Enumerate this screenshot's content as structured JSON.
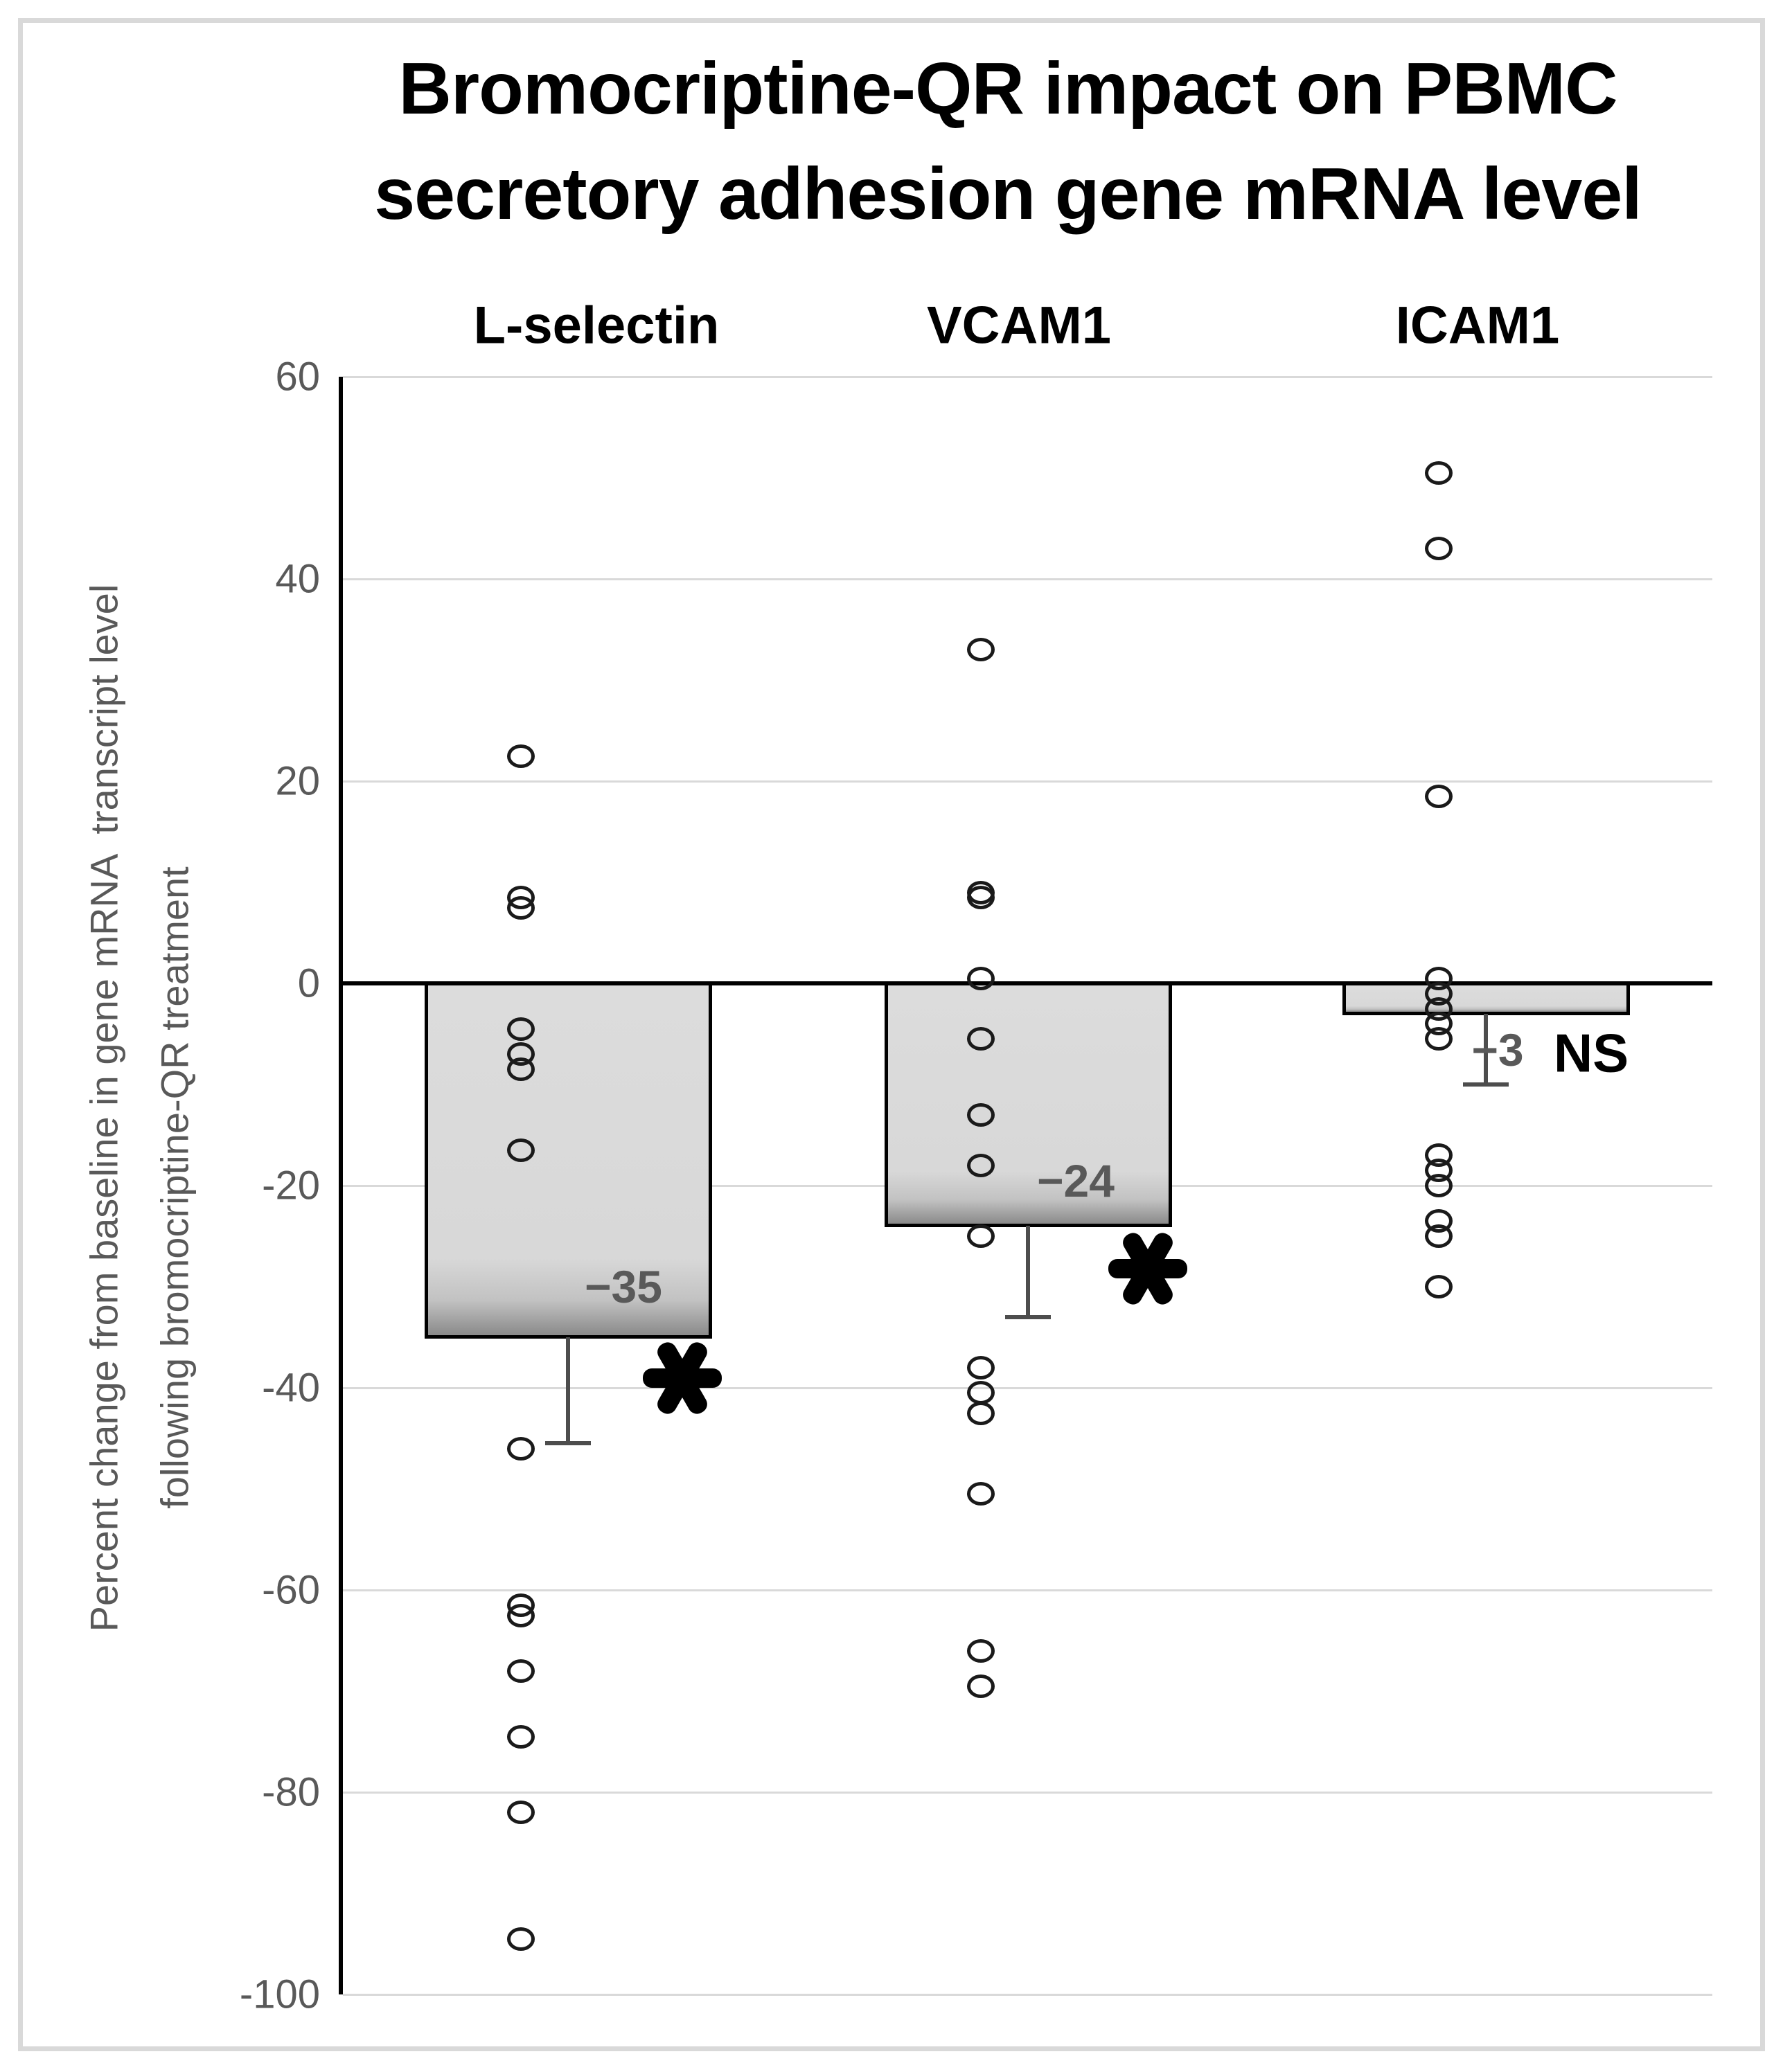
{
  "chart_data": {
    "type": "bar",
    "overlay": "scatter",
    "title": "Bromocriptine-QR impact on PBMC secretory adhesion gene mRNA level",
    "title_lines": [
      "Bromocriptine-QR impact on PBMC",
      "secretory adhesion gene mRNA level"
    ],
    "ylabel": "Percent change from baseline in gene mRNA transcript level following bromocriptine-QR treatment",
    "ylabel_lines": [
      "Percent change from baseline in gene mRNA  transcript level",
      "following bromocriptine-QR treatment"
    ],
    "xlabel": "",
    "ylim": [
      -100,
      60
    ],
    "yticks": [
      60,
      40,
      20,
      0,
      -20,
      -40,
      -60,
      -80,
      -100
    ],
    "grid": true,
    "legend": false,
    "categories": [
      "L-selectin",
      "VCAM1",
      "ICAM1"
    ],
    "series": [
      {
        "name": "L-selectin",
        "bar_mean": -35,
        "bar_label": "−35",
        "significance": "*",
        "error_bar_from": -35,
        "error_bar_to": -45.5,
        "points": [
          22.5,
          8.5,
          7.5,
          -4.5,
          -7,
          -8.5,
          -16.5,
          -46,
          -61.5,
          -62.5,
          -68,
          -74.5,
          -82,
          -94.5
        ]
      },
      {
        "name": "VCAM1",
        "bar_mean": -24,
        "bar_label": "−24",
        "significance": "*",
        "error_bar_from": -24,
        "error_bar_to": -33,
        "points": [
          33,
          9,
          8.5,
          0.5,
          -5.5,
          -13,
          -18,
          -25,
          -38,
          -40.5,
          -42.5,
          -50.5,
          -66,
          -69.5
        ]
      },
      {
        "name": "ICAM1",
        "bar_mean": -3,
        "bar_label": "−3",
        "significance": "NS",
        "error_bar_from": -3,
        "error_bar_to": -10,
        "points": [
          50.5,
          43,
          18.5,
          0.5,
          -1,
          -2.5,
          -4,
          -5.5,
          -17,
          -18.5,
          -20,
          -23.5,
          -25,
          -30
        ]
      }
    ],
    "colors": {
      "background": "#ffffff",
      "frame_border": "#d9d9d9",
      "bar_fill": "#d9d9d9",
      "bar_fill_shadow": "#8a8a8a",
      "bar_border": "#000000",
      "grid_line": "#d9d9d9",
      "axis_line": "#000000",
      "tick_label": "#595959",
      "bar_value_label": "#595959",
      "marker_outline": "#1a1a1a",
      "error_bar": "#4d4d4d",
      "significance": "#000000",
      "category_label": "#000000",
      "title": "#000000"
    }
  }
}
